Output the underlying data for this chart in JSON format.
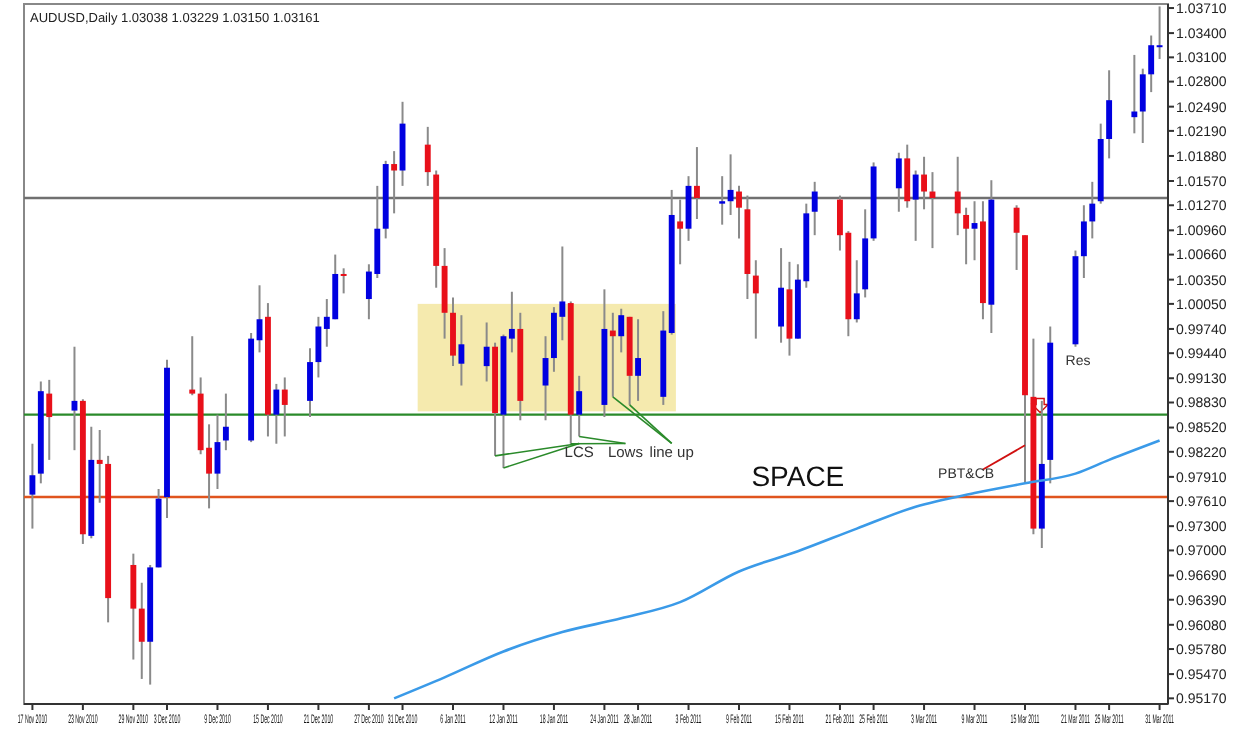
{
  "chart_data": {
    "type": "candlestick",
    "title": "AUDUSD,Daily  1.03038 1.03229 1.03150 1.03161",
    "x": [
      "2010-11-17",
      "2010-11-18",
      "2010-11-19",
      "2010-11-22",
      "2010-11-23",
      "2010-11-24",
      "2010-11-25",
      "2010-11-26",
      "2010-11-29",
      "2010-11-30",
      "2010-12-01",
      "2010-12-02",
      "2010-12-03",
      "2010-12-06",
      "2010-12-07",
      "2010-12-08",
      "2010-12-09",
      "2010-12-10",
      "2010-12-13",
      "2010-12-14",
      "2010-12-15",
      "2010-12-16",
      "2010-12-17",
      "2010-12-20",
      "2010-12-21",
      "2010-12-22",
      "2010-12-23",
      "2010-12-24",
      "2010-12-27",
      "2010-12-28",
      "2010-12-29",
      "2010-12-30",
      "2010-12-31",
      "2011-01-03",
      "2011-01-04",
      "2011-01-05",
      "2011-01-06",
      "2011-01-07",
      "2011-01-10",
      "2011-01-11",
      "2011-01-12",
      "2011-01-13",
      "2011-01-14",
      "2011-01-17",
      "2011-01-18",
      "2011-01-19",
      "2011-01-20",
      "2011-01-21",
      "2011-01-24",
      "2011-01-25",
      "2011-01-26",
      "2011-01-27",
      "2011-01-28",
      "2011-01-31",
      "2011-02-01",
      "2011-02-02",
      "2011-02-03",
      "2011-02-04",
      "2011-02-07",
      "2011-02-08",
      "2011-02-09",
      "2011-02-10",
      "2011-02-11",
      "2011-02-14",
      "2011-02-15",
      "2011-02-16",
      "2011-02-17",
      "2011-02-18",
      "2011-02-21",
      "2011-02-22",
      "2011-02-23",
      "2011-02-24",
      "2011-02-25",
      "2011-02-28",
      "2011-03-01",
      "2011-03-02",
      "2011-03-03",
      "2011-03-04",
      "2011-03-07",
      "2011-03-08",
      "2011-03-09",
      "2011-03-10",
      "2011-03-11",
      "2011-03-14",
      "2011-03-15",
      "2011-03-16",
      "2011-03-17",
      "2011-03-18",
      "2011-03-21",
      "2011-03-22",
      "2011-03-23",
      "2011-03-24",
      "2011-03-25",
      "2011-03-28",
      "2011-03-29",
      "2011-03-30",
      "2011-03-31"
    ],
    "xlim": [
      "2010-11-16",
      "2011-04-01"
    ],
    "xticks": [
      {
        "value": "2010-11-17",
        "label": "17 Nov 2010"
      },
      {
        "value": "2010-11-23",
        "label": "23 Nov 2010"
      },
      {
        "value": "2010-11-29",
        "label": "29 Nov 2010"
      },
      {
        "value": "2010-12-03",
        "label": "3 Dec 2010"
      },
      {
        "value": "2010-12-09",
        "label": "9 Dec 2010"
      },
      {
        "value": "2010-12-15",
        "label": "15 Dec 2010"
      },
      {
        "value": "2010-12-21",
        "label": "21 Dec 2010"
      },
      {
        "value": "2010-12-27",
        "label": "27 Dec 2010"
      },
      {
        "value": "2010-12-31",
        "label": "31 Dec 2010"
      },
      {
        "value": "2011-01-06",
        "label": "6 Jan 2011"
      },
      {
        "value": "2011-01-12",
        "label": "12 Jan 2011"
      },
      {
        "value": "2011-01-18",
        "label": "18 Jan 2011"
      },
      {
        "value": "2011-01-24",
        "label": "24 Jan 2011"
      },
      {
        "value": "2011-01-28",
        "label": "28 Jan 2011"
      },
      {
        "value": "2011-02-03",
        "label": "3 Feb 2011"
      },
      {
        "value": "2011-02-09",
        "label": "9 Feb 2011"
      },
      {
        "value": "2011-02-15",
        "label": "15 Feb 2011"
      },
      {
        "value": "2011-02-21",
        "label": "21 Feb 2011"
      },
      {
        "value": "2011-02-25",
        "label": "25 Feb 2011"
      },
      {
        "value": "2011-03-03",
        "label": "3 Mar 2011"
      },
      {
        "value": "2011-03-09",
        "label": "9 Mar 2011"
      },
      {
        "value": "2011-03-15",
        "label": "15 Mar 2011"
      },
      {
        "value": "2011-03-21",
        "label": "21 Mar 2011"
      },
      {
        "value": "2011-03-25",
        "label": "25 Mar 2011"
      },
      {
        "value": "2011-03-31",
        "label": "31 Mar 2011"
      }
    ],
    "series": [
      {
        "type": "candlestick",
        "ohlc": [
          [
            0.9769,
            0.9832,
            0.9727,
            0.9793
          ],
          [
            0.9795,
            0.9909,
            0.9783,
            0.9897
          ],
          [
            0.9894,
            0.9911,
            0.9812,
            0.9865
          ],
          [
            0.9873,
            0.9952,
            0.9824,
            0.9885
          ],
          [
            0.9885,
            0.9887,
            0.9708,
            0.972
          ],
          [
            0.9718,
            0.9853,
            0.9715,
            0.9812
          ],
          [
            0.9812,
            0.9849,
            0.9759,
            0.9807
          ],
          [
            0.9807,
            0.9817,
            0.9611,
            0.9641
          ],
          [
            0.9682,
            0.9696,
            0.9565,
            0.9628
          ],
          [
            0.9628,
            0.966,
            0.9541,
            0.9587
          ],
          [
            0.9587,
            0.9682,
            0.9534,
            0.9679
          ],
          [
            0.9679,
            0.9776,
            0.9679,
            0.9764
          ],
          [
            0.9766,
            0.9936,
            0.974,
            0.9926
          ],
          [
            0.9899,
            0.9965,
            0.9892,
            0.9894
          ],
          [
            0.9894,
            0.9914,
            0.9819,
            0.9824
          ],
          [
            0.9827,
            0.9856,
            0.9752,
            0.9795
          ],
          [
            0.9795,
            0.9868,
            0.9776,
            0.9834
          ],
          [
            0.9836,
            0.9894,
            0.9824,
            0.9853
          ],
          [
            0.9836,
            0.9969,
            0.9834,
            0.9962
          ],
          [
            0.996,
            1.0028,
            0.9945,
            0.9986
          ],
          [
            0.9989,
            1.0006,
            0.9841,
            0.9868
          ],
          [
            0.9868,
            0.9906,
            0.9832,
            0.9899
          ],
          [
            0.9899,
            0.9914,
            0.9841,
            0.988
          ],
          [
            0.9885,
            0.995,
            0.9865,
            0.9933
          ],
          [
            0.9933,
            0.9989,
            0.9914,
            0.9977
          ],
          [
            0.9974,
            1.0011,
            0.9952,
            0.9989
          ],
          [
            0.9986,
            1.0066,
            0.9986,
            1.0042
          ],
          [
            1.0042,
            1.0049,
            1.0018,
            1.004
          ],
          [
            1.0011,
            1.0054,
            0.9986,
            1.0045
          ],
          [
            1.0042,
            1.0151,
            1.0037,
            1.0098
          ],
          [
            1.0098,
            1.0182,
            1.0086,
            1.0178
          ],
          [
            1.0178,
            1.0194,
            1.0117,
            1.017
          ],
          [
            1.017,
            1.0255,
            1.0151,
            1.0228
          ],
          [
            1.0202,
            1.0224,
            1.0151,
            1.0168
          ],
          [
            1.0165,
            1.017,
            1.0025,
            1.0052
          ],
          [
            1.0052,
            1.0074,
            0.9962,
            0.9994
          ],
          [
            0.9994,
            1.0013,
            0.9928,
            0.9941
          ],
          [
            0.9931,
            0.9991,
            0.9904,
            0.9955
          ],
          [
            0.9928,
            0.9982,
            0.9909,
            0.9952
          ],
          [
            0.9952,
            0.9957,
            0.9817,
            0.987
          ],
          [
            0.9868,
            0.9967,
            0.9802,
            0.9965
          ],
          [
            0.9962,
            1.002,
            0.9945,
            0.9974
          ],
          [
            0.9974,
            0.9994,
            0.9861,
            0.9885
          ],
          [
            0.9904,
            0.9965,
            0.9861,
            0.9938
          ],
          [
            0.9938,
            1.0001,
            0.9921,
            0.9994
          ],
          [
            0.9989,
            1.0076,
            0.996,
            1.0008
          ],
          [
            1.0006,
            1.0008,
            0.9832,
            0.9868
          ],
          [
            0.9868,
            0.9916,
            0.9841,
            0.9897
          ],
          [
            0.988,
            1.0023,
            0.9865,
            0.9974
          ],
          [
            0.9972,
            0.9994,
            0.989,
            0.9965
          ],
          [
            0.9965,
            0.9999,
            0.9945,
            0.9991
          ],
          [
            0.9989,
            0.9989,
            0.988,
            0.9916
          ],
          [
            0.9916,
            0.9986,
            0.9885,
            0.9938
          ],
          [
            0.989,
            0.9996,
            0.988,
            0.9972
          ],
          [
            0.9969,
            1.0146,
            0.9967,
            1.0115
          ],
          [
            1.0107,
            1.0134,
            1.0054,
            1.0098
          ],
          [
            1.0098,
            1.0163,
            1.0083,
            1.0151
          ],
          [
            1.0151,
            1.0199,
            1.011,
            1.0136
          ],
          [
            1.0129,
            1.0163,
            1.0103,
            1.0132
          ],
          [
            1.0132,
            1.019,
            1.0115,
            1.0146
          ],
          [
            1.0144,
            1.0151,
            1.0086,
            1.0124
          ],
          [
            1.0122,
            1.0139,
            1.0011,
            1.0042
          ],
          [
            1.004,
            1.0059,
            0.9962,
            1.0018
          ],
          [
            0.9977,
            1.0074,
            0.9957,
            1.0025
          ],
          [
            1.0023,
            1.0057,
            0.9941,
            0.9962
          ],
          [
            0.9962,
            1.0054,
            0.9962,
            1.0035
          ],
          [
            1.0033,
            1.0129,
            1.0025,
            1.0117
          ],
          [
            1.0119,
            1.0156,
            1.009,
            1.0144
          ],
          [
            1.0134,
            1.0139,
            1.0071,
            1.009
          ],
          [
            1.0093,
            1.0095,
            0.9965,
            0.9986
          ],
          [
            0.9986,
            1.0059,
            0.9982,
            1.0018
          ],
          [
            1.0023,
            1.0122,
            1.0013,
            1.0086
          ],
          [
            1.0086,
            1.018,
            1.0083,
            1.0175
          ],
          [
            1.0148,
            1.0192,
            1.0119,
            1.0185
          ],
          [
            1.0185,
            1.0202,
            1.0124,
            1.0132
          ],
          [
            1.0134,
            1.017,
            1.0083,
            1.0165
          ],
          [
            1.0165,
            1.0187,
            1.0122,
            1.0144
          ],
          [
            1.0144,
            1.0168,
            1.0074,
            1.0136
          ],
          [
            1.0144,
            1.0187,
            1.009,
            1.0117
          ],
          [
            1.0115,
            1.0124,
            1.0054,
            1.0098
          ],
          [
            1.0098,
            1.0132,
            1.0059,
            1.0105
          ],
          [
            1.0107,
            1.0132,
            0.9986,
            1.0006
          ],
          [
            1.0004,
            1.0158,
            0.9969,
            1.0134
          ],
          [
            1.0124,
            1.0127,
            1.0047,
            1.0093
          ],
          [
            1.009,
            1.009,
            0.9783,
            0.9892
          ],
          [
            0.989,
            0.9962,
            0.972,
            0.9727
          ],
          [
            0.9727,
            0.9885,
            0.9703,
            0.9807
          ],
          [
            0.9812,
            0.9977,
            0.9783,
            0.9957
          ],
          [
            0.9955,
            1.0071,
            0.9952,
            1.0064
          ],
          [
            1.0064,
            1.0127,
            1.0037,
            1.0107
          ],
          [
            1.0107,
            1.0156,
            1.0086,
            1.0129
          ],
          [
            1.0132,
            1.0228,
            1.0129,
            1.0209
          ],
          [
            1.0209,
            1.0294,
            1.0185,
            1.0257
          ],
          [
            1.0236,
            1.0313,
            1.0216,
            1.0243
          ],
          [
            1.0243,
            1.0296,
            1.0204,
            1.0289
          ],
          [
            1.0289,
            1.0337,
            1.0267,
            1.0325
          ],
          [
            1.0324,
            1.0373,
            1.0308,
            1.0325
          ]
        ],
        "colors": [
          "#0000e0",
          "#0000e0",
          "#e8101a",
          "#0000e0",
          "#e8101a",
          "#0000e0",
          "#e8101a",
          "#e8101a",
          "#e8101a",
          "#e8101a",
          "#0000e0",
          "#0000e0",
          "#0000e0",
          "#e8101a",
          "#e8101a",
          "#e8101a",
          "#0000e0",
          "#0000e0",
          "#0000e0",
          "#0000e0",
          "#e8101a",
          "#0000e0",
          "#e8101a",
          "#0000e0",
          "#0000e0",
          "#0000e0",
          "#0000e0",
          "#e8101a",
          "#0000e0",
          "#0000e0",
          "#0000e0",
          "#e8101a",
          "#0000e0",
          "#e8101a",
          "#e8101a",
          "#e8101a",
          "#e8101a",
          "#0000e0",
          "#0000e0",
          "#e8101a",
          "#0000e0",
          "#0000e0",
          "#e8101a",
          "#0000e0",
          "#0000e0",
          "#0000e0",
          "#e8101a",
          "#0000e0",
          "#0000e0",
          "#e8101a",
          "#0000e0",
          "#e8101a",
          "#0000e0",
          "#0000e0",
          "#0000e0",
          "#e8101a",
          "#0000e0",
          "#e8101a",
          "#0000e0",
          "#0000e0",
          "#e8101a",
          "#e8101a",
          "#e8101a",
          "#0000e0",
          "#e8101a",
          "#0000e0",
          "#0000e0",
          "#0000e0",
          "#e8101a",
          "#e8101a",
          "#0000e0",
          "#0000e0",
          "#0000e0",
          "#0000e0",
          "#e8101a",
          "#0000e0",
          "#e8101a",
          "#e8101a",
          "#e8101a",
          "#e8101a",
          "#0000e0",
          "#e8101a",
          "#0000e0",
          "#e8101a",
          "#e8101a",
          "#e8101a",
          "#0000e0",
          "#0000e0",
          "#0000e0",
          "#0000e0",
          "#0000e0",
          "#0000e0",
          "#0000e0",
          "#0000e0",
          "#0000e0",
          "#0000e0",
          "#0000e0"
        ]
      },
      {
        "type": "line",
        "color": "#3a9ae8",
        "values": [
          null,
          null,
          null,
          null,
          null,
          null,
          null,
          null,
          null,
          null,
          null,
          null,
          null,
          null,
          null,
          null,
          null,
          null,
          null,
          null,
          null,
          null,
          null,
          null,
          null,
          null,
          null,
          null,
          null,
          null,
          null,
          0.9517,
          null,
          null,
          null,
          0.9543,
          null,
          null,
          null,
          null,
          0.9575,
          null,
          null,
          null,
          null,
          0.9599,
          null,
          null,
          null,
          null,
          0.9616,
          null,
          null,
          null,
          null,
          0.9636,
          null,
          null,
          null,
          null,
          0.9674,
          null,
          null,
          null,
          null,
          0.9699,
          null,
          null,
          null,
          null,
          0.9727,
          null,
          null,
          null,
          null,
          0.9754,
          null,
          null,
          null,
          null,
          0.9771,
          null,
          null,
          null,
          0.9783,
          null,
          null,
          null,
          0.9795,
          null,
          null,
          null,
          0.9812,
          null,
          null,
          null,
          0.9836
        ]
      }
    ],
    "ylim": [
      0.951,
      1.0376
    ],
    "yticks": [
      {
        "value": 1.0371,
        "label": "1.03710"
      },
      {
        "value": 1.034,
        "label": "1.03400"
      },
      {
        "value": 1.031,
        "label": "1.03100"
      },
      {
        "value": 1.028,
        "label": "1.02800"
      },
      {
        "value": 1.0249,
        "label": "1.02490"
      },
      {
        "value": 1.0219,
        "label": "1.02190"
      },
      {
        "value": 1.0188,
        "label": "1.01880"
      },
      {
        "value": 1.0157,
        "label": "1.01570"
      },
      {
        "value": 1.0127,
        "label": "1.01270"
      },
      {
        "value": 1.0096,
        "label": "1.00960"
      },
      {
        "value": 1.0066,
        "label": "1.00660"
      },
      {
        "value": 1.0035,
        "label": "1.00350"
      },
      {
        "value": 1.0005,
        "label": "1.00050"
      },
      {
        "value": 0.9974,
        "label": "0.99740"
      },
      {
        "value": 0.9944,
        "label": "0.99440"
      },
      {
        "value": 0.9913,
        "label": "0.99130"
      },
      {
        "value": 0.9883,
        "label": "0.98830"
      },
      {
        "value": 0.9852,
        "label": "0.98520"
      },
      {
        "value": 0.9822,
        "label": "0.98220"
      },
      {
        "value": 0.9791,
        "label": "0.97910"
      },
      {
        "value": 0.9761,
        "label": "0.97610"
      },
      {
        "value": 0.973,
        "label": "0.97300"
      },
      {
        "value": 0.97,
        "label": "0.97000"
      },
      {
        "value": 0.9669,
        "label": "0.96690"
      },
      {
        "value": 0.9639,
        "label": "0.96390"
      },
      {
        "value": 0.9608,
        "label": "0.96080"
      },
      {
        "value": 0.9578,
        "label": "0.95780"
      },
      {
        "value": 0.9547,
        "label": "0.95470"
      },
      {
        "value": 0.9517,
        "label": "0.95170"
      }
    ],
    "ref_lines": [
      {
        "axis": "y",
        "value": 1.0136,
        "color": "#707070"
      },
      {
        "axis": "y",
        "value": 0.9868,
        "color": "#2a8a2a"
      },
      {
        "axis": "y",
        "value": 0.9766,
        "color": "#e0541e"
      }
    ],
    "annotations": [
      {
        "text": "LCS",
        "x": "2011-01-12",
        "y": 0.9802
      },
      {
        "text": "Lows",
        "x": "2011-01-20",
        "y": 0.9832
      },
      {
        "text": "line up",
        "x": "2011-01-27",
        "y": 0.988
      },
      "SPACE",
      "PBT&CB",
      "Res"
    ]
  }
}
